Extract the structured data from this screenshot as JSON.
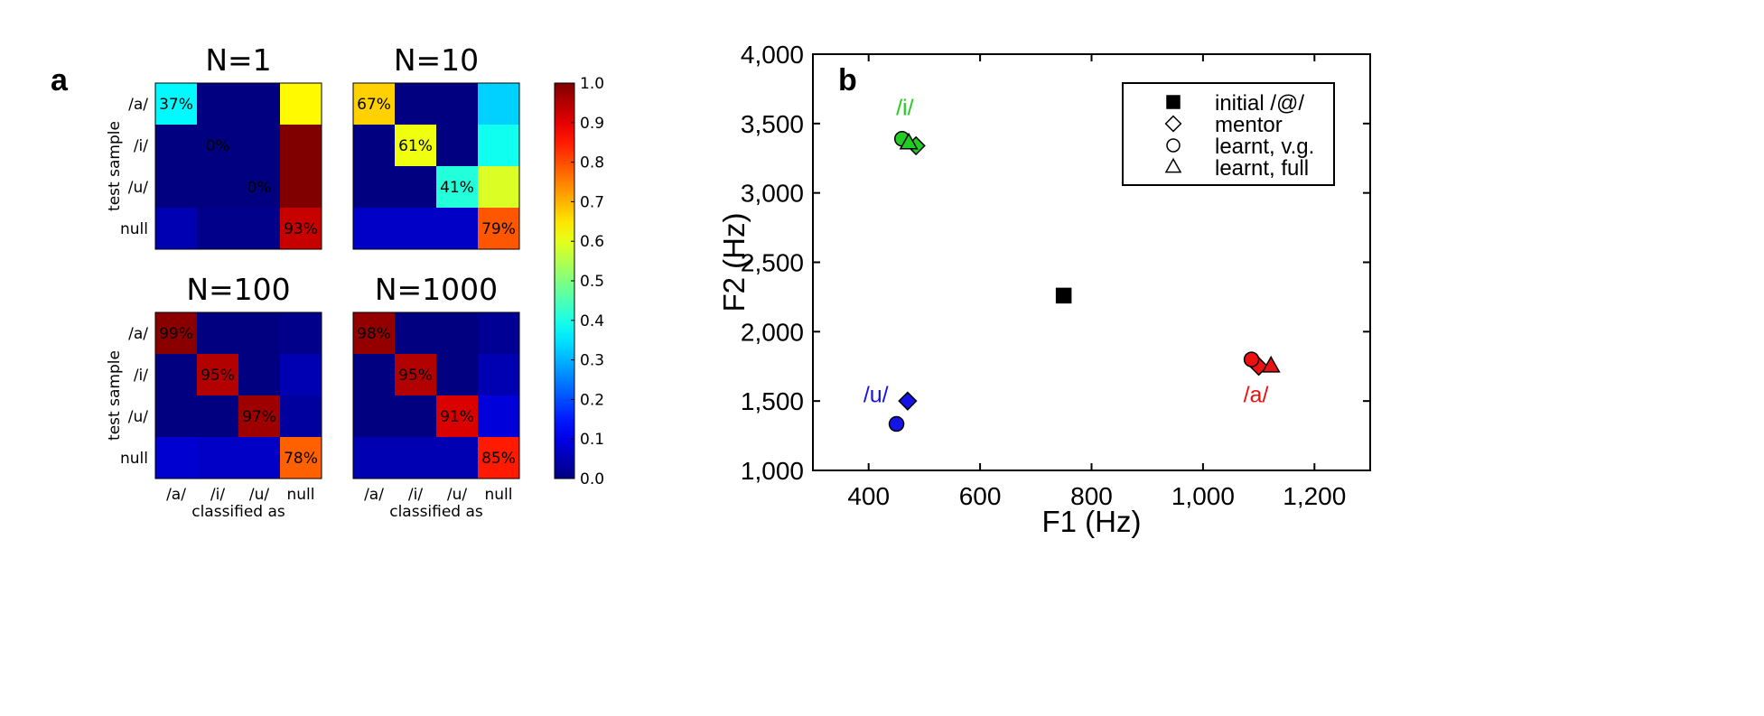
{
  "panel_labels": {
    "a": "a",
    "b": "b"
  },
  "chart_data": [
    {
      "type": "heatmap",
      "panel": "a",
      "row_labels": [
        "/a/",
        "/i/",
        "/u/",
        "null"
      ],
      "col_labels": [
        "/a/",
        "/i/",
        "/u/",
        "null"
      ],
      "ylabel": "test sample",
      "xlabel": "classified as",
      "colorbar": {
        "min": 0.0,
        "max": 1.0,
        "ticks": [
          "0.0",
          "0.1",
          "0.2",
          "0.3",
          "0.4",
          "0.5",
          "0.6",
          "0.7",
          "0.8",
          "0.9",
          "1.0"
        ]
      },
      "matrices": [
        {
          "title": "N=1",
          "values": [
            [
              0.37,
              0.0,
              0.0,
              0.63
            ],
            [
              0.0,
              0.0,
              0.0,
              1.0
            ],
            [
              0.0,
              0.0,
              0.0,
              1.0
            ],
            [
              0.05,
              0.01,
              0.01,
              0.93
            ]
          ],
          "labels": [
            [
              "37%",
              "",
              "",
              ""
            ],
            [
              "",
              "0%",
              "",
              ""
            ],
            [
              "",
              "",
              "0%",
              ""
            ],
            [
              "",
              "",
              "",
              "93%"
            ]
          ]
        },
        {
          "title": "N=10",
          "values": [
            [
              0.67,
              0.0,
              0.0,
              0.33
            ],
            [
              0.0,
              0.61,
              0.0,
              0.39
            ],
            [
              0.0,
              0.0,
              0.41,
              0.59
            ],
            [
              0.07,
              0.07,
              0.07,
              0.79
            ]
          ],
          "labels": [
            [
              "67%",
              "",
              "",
              ""
            ],
            [
              "",
              "61%",
              "",
              ""
            ],
            [
              "",
              "",
              "41%",
              ""
            ],
            [
              "",
              "",
              "",
              "79%"
            ]
          ]
        },
        {
          "title": "N=100",
          "values": [
            [
              0.99,
              0.0,
              0.0,
              0.01
            ],
            [
              0.0,
              0.95,
              0.0,
              0.05
            ],
            [
              0.0,
              0.0,
              0.97,
              0.03
            ],
            [
              0.08,
              0.07,
              0.07,
              0.78
            ]
          ],
          "labels": [
            [
              "99%",
              "",
              "",
              ""
            ],
            [
              "",
              "95%",
              "",
              ""
            ],
            [
              "",
              "",
              "97%",
              ""
            ],
            [
              "",
              "",
              "",
              "78%"
            ]
          ]
        },
        {
          "title": "N=1000",
          "values": [
            [
              0.98,
              0.0,
              0.0,
              0.02
            ],
            [
              0.0,
              0.95,
              0.0,
              0.05
            ],
            [
              0.0,
              0.0,
              0.91,
              0.09
            ],
            [
              0.05,
              0.05,
              0.05,
              0.85
            ]
          ],
          "labels": [
            [
              "98%",
              "",
              "",
              ""
            ],
            [
              "",
              "95%",
              "",
              ""
            ],
            [
              "",
              "",
              "91%",
              ""
            ],
            [
              "",
              "",
              "",
              "85%"
            ]
          ]
        }
      ]
    },
    {
      "type": "scatter",
      "panel": "b",
      "xlabel": "F1 (Hz)",
      "ylabel": "F2 (Hz)",
      "xlim": [
        300,
        1300
      ],
      "ylim": [
        1000,
        4000
      ],
      "xticks": [
        400,
        600,
        800,
        1000,
        1200
      ],
      "xtick_labels": [
        "400",
        "600",
        "800",
        "1,000",
        "1,200"
      ],
      "yticks": [
        1000,
        1500,
        2000,
        2500,
        3000,
        3500,
        4000
      ],
      "ytick_labels": [
        "1,000",
        "1,500",
        "2,000",
        "2,500",
        "3,000",
        "3,500",
        "4,000"
      ],
      "legend": {
        "position": "top-right",
        "entries": [
          {
            "marker": "square",
            "filled": true,
            "label": "initial /@/"
          },
          {
            "marker": "diamond",
            "filled": false,
            "label": "mentor"
          },
          {
            "marker": "circle",
            "filled": false,
            "label": "learnt, v.g."
          },
          {
            "marker": "triangle",
            "filled": false,
            "label": "learnt, full"
          }
        ]
      },
      "groups": [
        {
          "label": "/i/",
          "color": "#22cc22",
          "label_at": {
            "x": 465,
            "y": 3560
          }
        },
        {
          "label": "/u/",
          "color": "#1414e6",
          "label_at": {
            "x": 413,
            "y": 1490
          }
        },
        {
          "label": "/a/",
          "color": "#ee1111",
          "label_at": {
            "x": 1095,
            "y": 1490
          }
        }
      ],
      "points": [
        {
          "group": "",
          "marker": "square",
          "x": 750,
          "y": 2260,
          "color": "#000000"
        },
        {
          "group": "/i/",
          "marker": "diamond",
          "x": 485,
          "y": 3340,
          "color": "#22cc22"
        },
        {
          "group": "/i/",
          "marker": "circle",
          "x": 460,
          "y": 3390,
          "color": "#22cc22"
        },
        {
          "group": "/i/",
          "marker": "triangle",
          "x": 472,
          "y": 3360,
          "color": "#22cc22"
        },
        {
          "group": "/u/",
          "marker": "diamond",
          "x": 470,
          "y": 1500,
          "color": "#1414e6"
        },
        {
          "group": "/u/",
          "marker": "circle",
          "x": 450,
          "y": 1335,
          "color": "#1414e6"
        },
        {
          "group": "/a/",
          "marker": "diamond",
          "x": 1100,
          "y": 1750,
          "color": "#ee1111"
        },
        {
          "group": "/a/",
          "marker": "circle",
          "x": 1087,
          "y": 1800,
          "color": "#ee1111"
        },
        {
          "group": "/a/",
          "marker": "triangle",
          "x": 1122,
          "y": 1752,
          "color": "#ee1111"
        }
      ]
    }
  ]
}
